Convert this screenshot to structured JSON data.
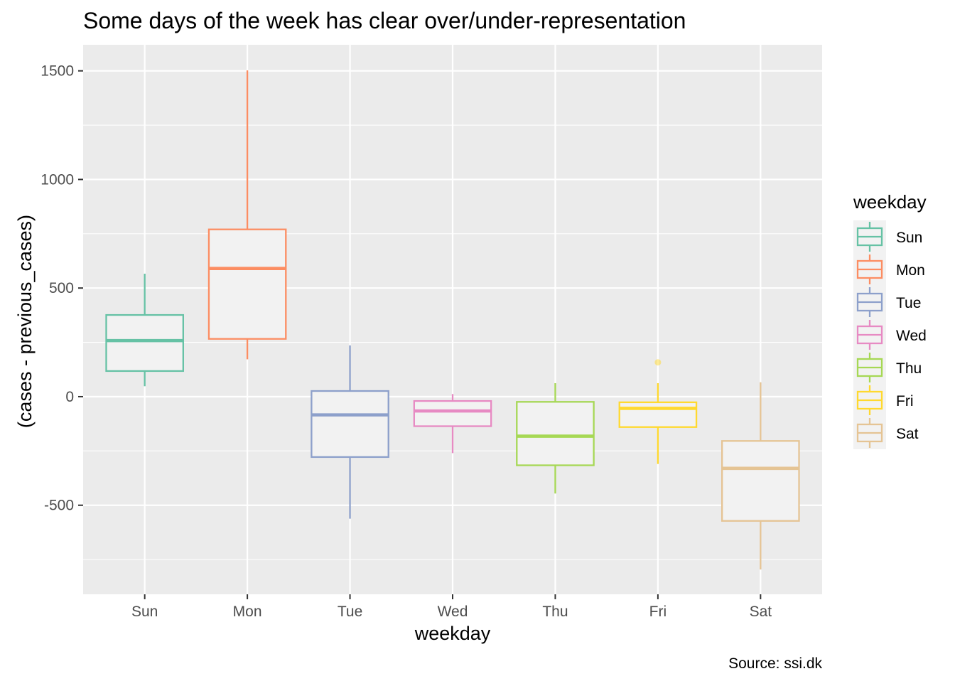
{
  "chart_data": {
    "type": "boxplot",
    "title": "Some days of the week has clear over/under-representation",
    "xlabel": "weekday",
    "ylabel": "(cases - previous_cases)",
    "caption": "Source: ssi.dk",
    "ylim": [
      -910,
      1620
    ],
    "y_ticks": [
      -500,
      0,
      500,
      1000,
      1500
    ],
    "y_tick_labels": [
      "-500",
      "0",
      "500",
      "1000",
      "1500"
    ],
    "categories": [
      "Sun",
      "Mon",
      "Tue",
      "Wed",
      "Thu",
      "Fri",
      "Sat"
    ],
    "boxes": [
      {
        "category": "Sun",
        "min": 48,
        "q1": 118,
        "median": 258,
        "q3": 376,
        "max": 566,
        "outliers": [],
        "color": "#66C2A5"
      },
      {
        "category": "Mon",
        "min": 172,
        "q1": 266,
        "median": 590,
        "q3": 770,
        "max": 1502,
        "outliers": [],
        "color": "#FC8D62"
      },
      {
        "category": "Tue",
        "min": -562,
        "q1": -278,
        "median": -84,
        "q3": 26,
        "max": 236,
        "outliers": [],
        "color": "#8DA0CB"
      },
      {
        "category": "Wed",
        "min": -260,
        "q1": -136,
        "median": -66,
        "q3": -20,
        "max": 12,
        "outliers": [],
        "color": "#E78AC3"
      },
      {
        "category": "Thu",
        "min": -446,
        "q1": -316,
        "median": -182,
        "q3": -24,
        "max": 62,
        "outliers": [],
        "color": "#A6D854"
      },
      {
        "category": "Fri",
        "min": -310,
        "q1": -140,
        "median": -54,
        "q3": -26,
        "max": 62,
        "outliers": [
          158
        ],
        "color": "#FFD92F"
      },
      {
        "category": "Sat",
        "min": -796,
        "q1": -572,
        "median": -330,
        "q3": -204,
        "max": 66,
        "outliers": [],
        "color": "#E5C494"
      }
    ],
    "grid": true,
    "legend": {
      "title": "weekday",
      "position": "right",
      "items": [
        "Sun",
        "Mon",
        "Tue",
        "Wed",
        "Thu",
        "Fri",
        "Sat"
      ]
    }
  }
}
